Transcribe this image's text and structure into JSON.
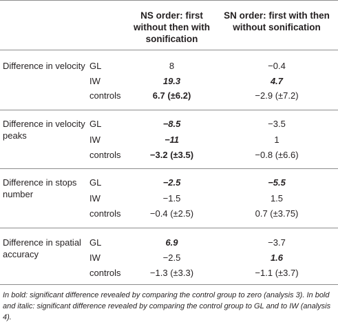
{
  "header": {
    "col1": "NS order: first without then with sonification",
    "col2": "SN order: first with then without sonification"
  },
  "sections": [
    {
      "label": "Difference in velocity",
      "rows": [
        {
          "group": "GL",
          "v1": "8",
          "v2": "−0.4"
        },
        {
          "group": "IW",
          "v1": "19.3",
          "v2": "4.7"
        },
        {
          "group": "controls",
          "v1": "6.7 (±6.2)",
          "v2": "−2.9 (±7.2)"
        }
      ]
    },
    {
      "label": "Difference in velocity peaks",
      "rows": [
        {
          "group": "GL",
          "v1": "−8.5",
          "v2": "−3.5"
        },
        {
          "group": "IW",
          "v1": "−11",
          "v2": "1"
        },
        {
          "group": "controls",
          "v1": "−3.2 (±3.5)",
          "v2": "−0.8 (±6.6)"
        }
      ]
    },
    {
      "label": "Difference in stops number",
      "rows": [
        {
          "group": "GL",
          "v1": "−2.5",
          "v2": "−5.5"
        },
        {
          "group": "IW",
          "v1": "−1.5",
          "v2": "1.5"
        },
        {
          "group": "controls",
          "v1": "−0.4 (±2.5)",
          "v2": "0.7 (±3.75)"
        }
      ]
    },
    {
      "label": "Difference in spatial accuracy",
      "rows": [
        {
          "group": "GL",
          "v1": "6.9",
          "v2": "−3.7"
        },
        {
          "group": "IW",
          "v1": "−2.5",
          "v2": "1.6"
        },
        {
          "group": "controls",
          "v1": "−1.3 (±3.3)",
          "v2": "−1.1 (±3.7)"
        }
      ]
    }
  ],
  "footnote": {
    "bold": "In bold: significant difference revealed by comparing the control group to zero (analysis 3).",
    "bold_italic": "In bold and italic: significant difference revealed by comparing the control group to GL and to IW (analysis 4)."
  }
}
